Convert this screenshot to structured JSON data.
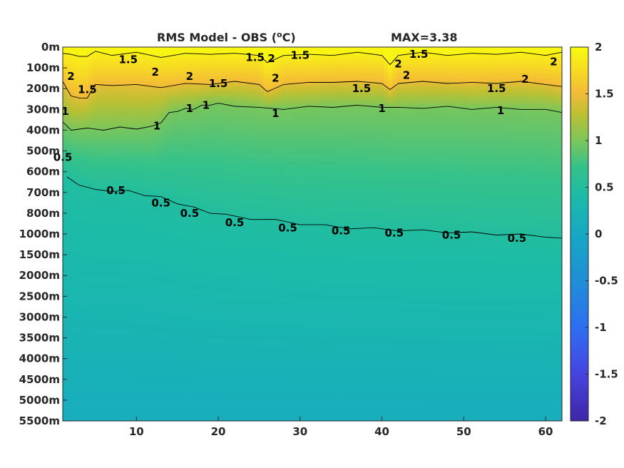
{
  "chart_data": {
    "type": "heatmap",
    "title": "RMS Model - OBS (°C)",
    "title_main": "RMS Model - OBS (",
    "title_sup": "o",
    "title_end": "C)",
    "max_label": "MAX=3.38",
    "xlim": [
      1,
      62
    ],
    "xticks": [
      10,
      20,
      30,
      40,
      50,
      60
    ],
    "xtick_labels": [
      "10",
      "20",
      "30",
      "40",
      "50",
      "60"
    ],
    "ytick_labels": [
      "0m",
      "100m",
      "200m",
      "300m",
      "400m",
      "500m",
      "600m",
      "700m",
      "800m",
      "1000m",
      "1500m",
      "2000m",
      "2500m",
      "3000m",
      "3500m",
      "4000m",
      "4500m",
      "5000m",
      "5500m"
    ],
    "colorbar": {
      "range": [
        -2,
        2
      ],
      "ticks": [
        2,
        1.5,
        1,
        0.5,
        0,
        -0.5,
        -1,
        -1.5,
        -2
      ],
      "tick_labels": [
        "2",
        "1.5",
        "1",
        "0.5",
        "0",
        "-0.5",
        "-1",
        "-1.5",
        "-2"
      ],
      "colormap": "parula",
      "colors": [
        "#3e26a8",
        "#4743e0",
        "#2d6ff2",
        "#1f8fd6",
        "#16a8c4",
        "#1bbba8",
        "#35c28a",
        "#7cc65a",
        "#bcc032",
        "#f4bc36",
        "#f7dd22",
        "#f9fb0e"
      ]
    },
    "contour_levels": [
      0.5,
      1,
      1.5,
      2
    ],
    "contours": [
      {
        "level": 0.5,
        "label": "0.5",
        "x": [
          1.5,
          3,
          5,
          7,
          9,
          11,
          13,
          15,
          17,
          19,
          21,
          24,
          27,
          30,
          33,
          36,
          39,
          42,
          45,
          48,
          51,
          54,
          57,
          60,
          62
        ],
        "y": [
          6.3,
          6.6,
          6.9,
          6.9,
          6.95,
          7.1,
          7.25,
          7.5,
          7.75,
          7.95,
          8.1,
          8.25,
          8.35,
          8.5,
          8.6,
          8.7,
          8.75,
          8.8,
          8.85,
          8.9,
          8.95,
          9.0,
          9.05,
          9.1,
          9.25
        ]
      },
      {
        "level": 1,
        "label": "1",
        "x": [
          1,
          2,
          4,
          6,
          8,
          10,
          12,
          13,
          14,
          15,
          16,
          17,
          18,
          19,
          20,
          22,
          25,
          28,
          31,
          34,
          37,
          40,
          42,
          45,
          48,
          51,
          54,
          57,
          60,
          62
        ],
        "y": [
          3.65,
          3.95,
          3.95,
          3.95,
          3.9,
          3.9,
          3.85,
          3.6,
          3.2,
          3.05,
          3.0,
          2.95,
          2.85,
          2.75,
          2.75,
          2.8,
          2.95,
          2.95,
          2.9,
          2.85,
          2.85,
          2.85,
          2.95,
          2.9,
          2.9,
          2.95,
          2.95,
          2.95,
          3.05,
          3.1
        ]
      },
      {
        "level": 1.5,
        "label": "1.5",
        "x": [
          1,
          2,
          3,
          4,
          5,
          7,
          10,
          13,
          16,
          19,
          22,
          25,
          26,
          28,
          31,
          34,
          37,
          40,
          41,
          42,
          45,
          48,
          51,
          54,
          57,
          60,
          62
        ],
        "y": [
          1.7,
          2.3,
          2.5,
          2.4,
          1.85,
          1.8,
          1.85,
          1.9,
          1.8,
          1.75,
          1.7,
          1.75,
          2.2,
          1.75,
          1.75,
          1.65,
          1.7,
          1.7,
          2.1,
          1.7,
          1.7,
          1.7,
          1.75,
          1.7,
          1.7,
          1.75,
          1.95
        ]
      },
      {
        "level": 2,
        "label": "2",
        "x": [
          1,
          2,
          3,
          4,
          5,
          7,
          10,
          13,
          16,
          19,
          22,
          25,
          26,
          28,
          31,
          34,
          37,
          40,
          41,
          42,
          45,
          48,
          51,
          54,
          57,
          60,
          62
        ],
        "y": [
          0.35,
          0.3,
          0.5,
          0.4,
          0.25,
          0.35,
          0.3,
          0.45,
          0.35,
          0.3,
          0.35,
          0.35,
          0.8,
          0.35,
          0.4,
          0.35,
          0.3,
          0.35,
          0.9,
          0.35,
          0.3,
          0.35,
          0.35,
          0.3,
          0.3,
          0.35,
          0.3
        ]
      }
    ],
    "contour_labels": [
      {
        "text": "1.5",
        "x": 9,
        "y": 0.6
      },
      {
        "text": "2",
        "x": 2,
        "y": 1.4
      },
      {
        "text": "1.5",
        "x": 4,
        "y": 2.05
      },
      {
        "text": "2",
        "x": 12.3,
        "y": 1.2
      },
      {
        "text": "2",
        "x": 16.5,
        "y": 1.4
      },
      {
        "text": "1.5",
        "x": 20,
        "y": 1.75
      },
      {
        "text": "1.5",
        "x": 24.5,
        "y": 0.5
      },
      {
        "text": "2",
        "x": 26.5,
        "y": 0.55
      },
      {
        "text": "1.5",
        "x": 30,
        "y": 0.4
      },
      {
        "text": "2",
        "x": 27,
        "y": 1.5
      },
      {
        "text": "1.5",
        "x": 37.5,
        "y": 2.0
      },
      {
        "text": "2",
        "x": 42,
        "y": 0.8
      },
      {
        "text": "1.5",
        "x": 44.5,
        "y": 0.35
      },
      {
        "text": "2",
        "x": 43,
        "y": 1.35
      },
      {
        "text": "1.5",
        "x": 54,
        "y": 2.0
      },
      {
        "text": "2",
        "x": 57.5,
        "y": 1.55
      },
      {
        "text": "2",
        "x": 61,
        "y": 0.7
      },
      {
        "text": "1",
        "x": 1.3,
        "y": 3.1
      },
      {
        "text": "1",
        "x": 12.5,
        "y": 3.8
      },
      {
        "text": "1",
        "x": 16.5,
        "y": 2.95
      },
      {
        "text": "1",
        "x": 18.5,
        "y": 2.8
      },
      {
        "text": "1",
        "x": 27,
        "y": 3.2
      },
      {
        "text": "1",
        "x": 40,
        "y": 2.95
      },
      {
        "text": "1",
        "x": 54.5,
        "y": 3.05
      },
      {
        "text": "0.5",
        "x": 1,
        "y": 5.3
      },
      {
        "text": "0.5",
        "x": 7.5,
        "y": 6.9
      },
      {
        "text": "0.5",
        "x": 13,
        "y": 7.5
      },
      {
        "text": "0.5",
        "x": 16.5,
        "y": 8.0
      },
      {
        "text": "0.5",
        "x": 22,
        "y": 8.45
      },
      {
        "text": "0.5",
        "x": 28.5,
        "y": 8.7
      },
      {
        "text": "0.5",
        "x": 35,
        "y": 8.85
      },
      {
        "text": "0.5",
        "x": 41.5,
        "y": 8.95
      },
      {
        "text": "0.5",
        "x": 48.5,
        "y": 9.05
      },
      {
        "text": "0.5",
        "x": 56.5,
        "y": 9.2
      }
    ]
  }
}
